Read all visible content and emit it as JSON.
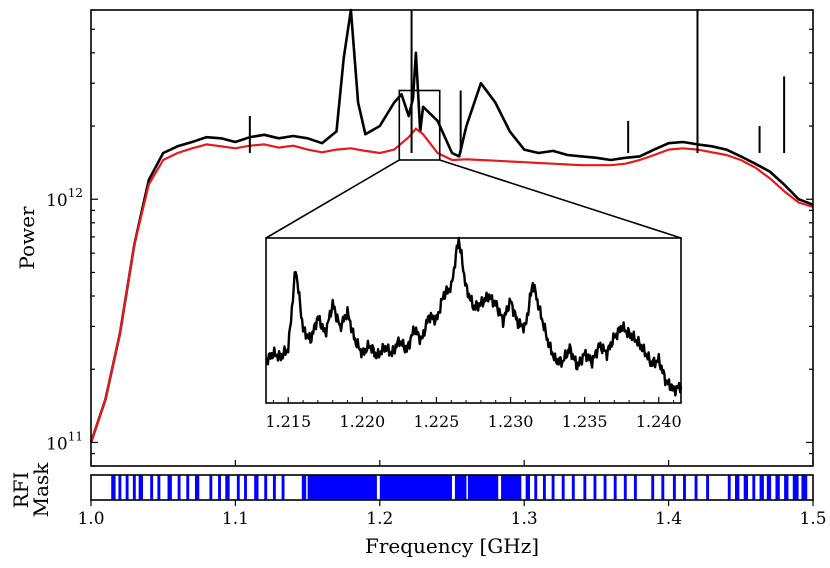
{
  "chart_data": [
    {
      "id": "main",
      "type": "line",
      "ylabel": "Power",
      "yscale": "log",
      "xlim": [
        1.0,
        1.5
      ],
      "ylim": [
        80000000000,
        6000000000000
      ],
      "yticks": [
        {
          "value": 100000000000.0,
          "base": "10",
          "exp": "11"
        },
        {
          "value": 1000000000000.0,
          "base": "10",
          "exp": "12"
        }
      ],
      "series": [
        {
          "role": "spectrum",
          "color": "#000000",
          "x": [
            1.0,
            1.01,
            1.02,
            1.03,
            1.04,
            1.05,
            1.06,
            1.07,
            1.08,
            1.09,
            1.1,
            1.11,
            1.12,
            1.13,
            1.14,
            1.15,
            1.16,
            1.17,
            1.175,
            1.18,
            1.185,
            1.19,
            1.2,
            1.21,
            1.215,
            1.22,
            1.223,
            1.225,
            1.228,
            1.23,
            1.24,
            1.25,
            1.255,
            1.26,
            1.27,
            1.28,
            1.29,
            1.3,
            1.31,
            1.32,
            1.33,
            1.34,
            1.35,
            1.36,
            1.37,
            1.38,
            1.39,
            1.4,
            1.41,
            1.42,
            1.43,
            1.44,
            1.45,
            1.46,
            1.47,
            1.48,
            1.49,
            1.5
          ],
          "y": [
            100000000000.0,
            150000000000.0,
            280000000000.0,
            650000000000.0,
            1200000000000.0,
            1550000000000.0,
            1650000000000.0,
            1720000000000.0,
            1800000000000.0,
            1780000000000.0,
            1720000000000.0,
            1800000000000.0,
            1840000000000.0,
            1780000000000.0,
            1820000000000.0,
            1780000000000.0,
            1700000000000.0,
            1900000000000.0,
            3800000000000.0,
            6000000000000.0,
            2500000000000.0,
            1850000000000.0,
            2000000000000.0,
            2500000000000.0,
            2700000000000.0,
            2200000000000.0,
            2600000000000.0,
            4000000000000.0,
            1900000000000.0,
            2400000000000.0,
            2100000000000.0,
            1550000000000.0,
            1500000000000.0,
            2000000000000.0,
            3000000000000.0,
            2500000000000.0,
            1900000000000.0,
            1600000000000.0,
            1550000000000.0,
            1580000000000.0,
            1520000000000.0,
            1500000000000.0,
            1480000000000.0,
            1450000000000.0,
            1480000000000.0,
            1500000000000.0,
            1600000000000.0,
            1700000000000.0,
            1720000000000.0,
            1680000000000.0,
            1650000000000.0,
            1600000000000.0,
            1500000000000.0,
            1400000000000.0,
            1300000000000.0,
            1150000000000.0,
            1000000000000.0,
            950000000000.0
          ]
        },
        {
          "role": "smooth-fit",
          "color": "#e41a1c",
          "x": [
            1.0,
            1.01,
            1.02,
            1.03,
            1.04,
            1.05,
            1.06,
            1.07,
            1.08,
            1.09,
            1.1,
            1.11,
            1.12,
            1.13,
            1.14,
            1.15,
            1.16,
            1.17,
            1.18,
            1.19,
            1.2,
            1.21,
            1.22,
            1.225,
            1.23,
            1.24,
            1.25,
            1.26,
            1.27,
            1.28,
            1.29,
            1.3,
            1.31,
            1.32,
            1.33,
            1.34,
            1.35,
            1.36,
            1.37,
            1.38,
            1.39,
            1.4,
            1.41,
            1.42,
            1.43,
            1.44,
            1.45,
            1.46,
            1.47,
            1.48,
            1.49,
            1.5
          ],
          "y": [
            100000000000.0,
            150000000000.0,
            280000000000.0,
            650000000000.0,
            1150000000000.0,
            1450000000000.0,
            1550000000000.0,
            1620000000000.0,
            1680000000000.0,
            1650000000000.0,
            1620000000000.0,
            1660000000000.0,
            1680000000000.0,
            1630000000000.0,
            1660000000000.0,
            1600000000000.0,
            1560000000000.0,
            1600000000000.0,
            1620000000000.0,
            1580000000000.0,
            1550000000000.0,
            1600000000000.0,
            1800000000000.0,
            1950000000000.0,
            1850000000000.0,
            1550000000000.0,
            1450000000000.0,
            1460000000000.0,
            1450000000000.0,
            1440000000000.0,
            1430000000000.0,
            1420000000000.0,
            1410000000000.0,
            1400000000000.0,
            1390000000000.0,
            1380000000000.0,
            1380000000000.0,
            1380000000000.0,
            1400000000000.0,
            1450000000000.0,
            1520000000000.0,
            1600000000000.0,
            1620000000000.0,
            1600000000000.0,
            1560000000000.0,
            1520000000000.0,
            1450000000000.0,
            1350000000000.0,
            1220000000000.0,
            1080000000000.0,
            970000000000.0,
            930000000000.0
          ]
        }
      ],
      "spikes": [
        {
          "x": 1.222,
          "y": 6000000000000
        },
        {
          "x": 1.42,
          "y": 6000000000000
        },
        {
          "x": 1.48,
          "y": 3200000000000
        },
        {
          "x": 1.11,
          "y": 2200000000000
        },
        {
          "x": 1.256,
          "y": 2800000000000
        },
        {
          "x": 1.463,
          "y": 2000000000000
        },
        {
          "x": 1.372,
          "y": 2100000000000
        }
      ],
      "zoom_box": {
        "x": [
          1.2135,
          1.2415
        ],
        "y": [
          1450000000000,
          2800000000000
        ]
      }
    },
    {
      "id": "inset",
      "type": "line",
      "xlim": [
        1.2135,
        1.2415
      ],
      "xticks": [
        "1.215",
        "1.220",
        "1.225",
        "1.230",
        "1.235",
        "1.240"
      ],
      "series": [
        {
          "color": "#000000",
          "x": [
            1.2135,
            1.214,
            1.2145,
            1.215,
            1.2155,
            1.216,
            1.2165,
            1.217,
            1.2175,
            1.218,
            1.2185,
            1.219,
            1.2195,
            1.22,
            1.2205,
            1.221,
            1.2215,
            1.222,
            1.2225,
            1.223,
            1.2235,
            1.224,
            1.2245,
            1.225,
            1.2255,
            1.226,
            1.2265,
            1.227,
            1.2275,
            1.228,
            1.2285,
            1.229,
            1.2295,
            1.23,
            1.2305,
            1.231,
            1.2315,
            1.232,
            1.2325,
            1.233,
            1.2335,
            1.234,
            1.2345,
            1.235,
            1.2355,
            1.236,
            1.2365,
            1.237,
            1.2375,
            1.238,
            1.2385,
            1.239,
            1.2395,
            1.24,
            1.2405,
            1.241,
            1.2415
          ],
          "y": [
            0.26,
            0.3,
            0.28,
            0.33,
            0.82,
            0.45,
            0.38,
            0.52,
            0.42,
            0.6,
            0.46,
            0.55,
            0.38,
            0.3,
            0.35,
            0.28,
            0.34,
            0.3,
            0.38,
            0.32,
            0.45,
            0.38,
            0.53,
            0.5,
            0.66,
            0.7,
            1.0,
            0.7,
            0.58,
            0.6,
            0.65,
            0.6,
            0.5,
            0.62,
            0.48,
            0.46,
            0.73,
            0.55,
            0.38,
            0.26,
            0.25,
            0.33,
            0.22,
            0.3,
            0.25,
            0.35,
            0.3,
            0.4,
            0.46,
            0.42,
            0.38,
            0.32,
            0.24,
            0.26,
            0.13,
            0.08,
            0.1
          ]
        }
      ]
    },
    {
      "id": "mask",
      "type": "bar",
      "ylabel": [
        "RFI",
        "Mask"
      ],
      "xlabel": "Frequency [GHz]",
      "xlim": [
        1.0,
        1.5
      ],
      "xticks": [
        "1.0",
        "1.1",
        "1.2",
        "1.3",
        "1.4",
        "1.5"
      ],
      "color": "#0000ff",
      "flagged_ranges": [
        [
          1.014,
          1.017
        ],
        [
          1.019,
          1.021
        ],
        [
          1.024,
          1.026
        ],
        [
          1.029,
          1.031
        ],
        [
          1.033,
          1.036
        ],
        [
          1.041,
          1.043
        ],
        [
          1.046,
          1.048
        ],
        [
          1.053,
          1.056
        ],
        [
          1.06,
          1.062
        ],
        [
          1.066,
          1.068
        ],
        [
          1.072,
          1.075
        ],
        [
          1.082,
          1.084
        ],
        [
          1.088,
          1.09
        ],
        [
          1.093,
          1.096
        ],
        [
          1.101,
          1.103
        ],
        [
          1.106,
          1.108
        ],
        [
          1.113,
          1.116
        ],
        [
          1.12,
          1.122
        ],
        [
          1.126,
          1.128
        ],
        [
          1.132,
          1.134
        ],
        [
          1.146,
          1.149
        ],
        [
          1.151,
          1.153
        ],
        [
          1.156,
          1.158
        ],
        [
          1.15,
          1.198
        ],
        [
          1.2,
          1.25
        ],
        [
          1.252,
          1.26
        ],
        [
          1.261,
          1.282
        ],
        [
          1.284,
          1.298
        ],
        [
          1.301,
          1.304
        ],
        [
          1.307,
          1.309
        ],
        [
          1.313,
          1.315
        ],
        [
          1.319,
          1.321
        ],
        [
          1.326,
          1.328
        ],
        [
          1.333,
          1.335
        ],
        [
          1.341,
          1.343
        ],
        [
          1.348,
          1.35
        ],
        [
          1.355,
          1.357
        ],
        [
          1.362,
          1.364
        ],
        [
          1.369,
          1.371
        ],
        [
          1.376,
          1.378
        ],
        [
          1.388,
          1.39
        ],
        [
          1.395,
          1.397
        ],
        [
          1.403,
          1.405
        ],
        [
          1.41,
          1.412
        ],
        [
          1.418,
          1.42
        ],
        [
          1.426,
          1.428
        ],
        [
          1.441,
          1.443
        ],
        [
          1.446,
          1.449
        ],
        [
          1.452,
          1.455
        ],
        [
          1.458,
          1.46
        ],
        [
          1.463,
          1.466
        ],
        [
          1.468,
          1.471
        ],
        [
          1.474,
          1.477
        ],
        [
          1.48,
          1.483
        ],
        [
          1.486,
          1.49
        ],
        [
          1.492,
          1.496
        ]
      ]
    }
  ]
}
